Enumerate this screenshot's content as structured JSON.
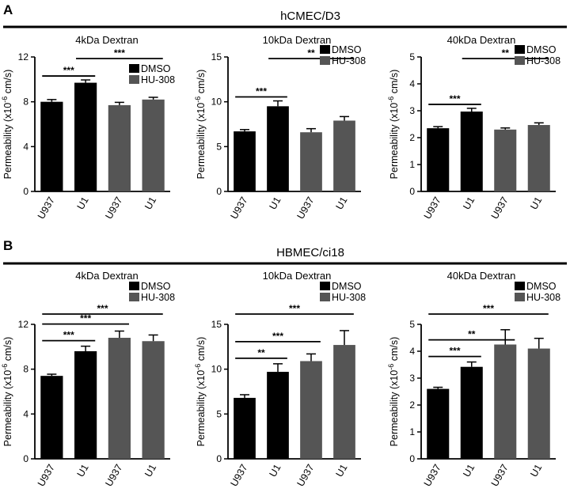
{
  "panels": [
    {
      "letter": "A",
      "title": "hCMEC/D3",
      "rule_color": "#000000",
      "charts": [
        {
          "subtitle": "4kDa Dextran"
        },
        {
          "subtitle": "10kDa Dextran"
        },
        {
          "subtitle": "40kDa Dextran"
        }
      ]
    },
    {
      "letter": "B",
      "title": "HBMEC/ci18",
      "rule_color": "#000000",
      "charts": [
        {
          "subtitle": "4kDa Dextran"
        },
        {
          "subtitle": "10kDa Dextran"
        },
        {
          "subtitle": "40kDa Dextran"
        }
      ]
    }
  ],
  "colors": {
    "DMSO": "#000000",
    "HU-308": "#555555"
  },
  "chart_data": [
    {
      "type": "bar",
      "panel": "A",
      "title": "4kDa Dextran",
      "ylabel": "Permeability (x10^-6 cm/s)",
      "ylabel_base": "Permeability (x10",
      "ylabel_exp": "-6",
      "ylabel_tail": " cm/s)",
      "categories": [
        "U937",
        "U1",
        "U937",
        "U1"
      ],
      "values": [
        8.0,
        9.7,
        7.7,
        8.2
      ],
      "errors": [
        0.2,
        0.25,
        0.25,
        0.2
      ],
      "groups": [
        "DMSO",
        "DMSO",
        "HU-308",
        "HU-308"
      ],
      "legend": [
        "DMSO",
        "HU-308"
      ],
      "ylim": [
        0,
        12
      ],
      "yticks": [
        0,
        4,
        8,
        12
      ],
      "significance": [
        {
          "from": 0,
          "to": 1,
          "label": "***"
        },
        {
          "from": 1,
          "to": 3,
          "label": "***"
        }
      ]
    },
    {
      "type": "bar",
      "panel": "A",
      "title": "10kDa Dextran",
      "ylabel": "Permeability (x10^-6 cm/s)",
      "ylabel_base": "Permeability (x10",
      "ylabel_exp": "-6",
      "ylabel_tail": " cm/s)",
      "categories": [
        "U937",
        "U1",
        "U937",
        "U1"
      ],
      "values": [
        6.7,
        9.5,
        6.6,
        7.9
      ],
      "errors": [
        0.2,
        0.6,
        0.4,
        0.45
      ],
      "groups": [
        "DMSO",
        "DMSO",
        "HU-308",
        "HU-308"
      ],
      "legend": [
        "DMSO",
        "HU-308"
      ],
      "ylim": [
        0,
        15
      ],
      "yticks": [
        0,
        5,
        10,
        15
      ],
      "significance": [
        {
          "from": 0,
          "to": 1,
          "label": "***"
        },
        {
          "from": 1,
          "to": 3,
          "label": "**"
        }
      ]
    },
    {
      "type": "bar",
      "panel": "A",
      "title": "40kDa Dextran",
      "ylabel": "Permeability (x10^-6 cm/s)",
      "ylabel_base": "Permeability (x10",
      "ylabel_exp": "-6",
      "ylabel_tail": " cm/s)",
      "categories": [
        "U937",
        "U1",
        "U937",
        "U1"
      ],
      "values": [
        2.35,
        2.97,
        2.3,
        2.47
      ],
      "errors": [
        0.06,
        0.12,
        0.06,
        0.08
      ],
      "groups": [
        "DMSO",
        "DMSO",
        "HU-308",
        "HU-308"
      ],
      "legend": [
        "DMSO",
        "HU-308"
      ],
      "ylim": [
        0,
        5
      ],
      "yticks": [
        0,
        1,
        2,
        3,
        4,
        5
      ],
      "significance": [
        {
          "from": 0,
          "to": 1,
          "label": "***"
        },
        {
          "from": 1,
          "to": 3,
          "label": "**"
        }
      ]
    },
    {
      "type": "bar",
      "panel": "B",
      "title": "4kDa Dextran",
      "ylabel": "Permeability (x10^-6 cm/s)",
      "ylabel_base": "Permeability (x10",
      "ylabel_exp": "-6",
      "ylabel_tail": " cm/s)",
      "categories": [
        "U937",
        "U1",
        "U937",
        "U1"
      ],
      "values": [
        7.4,
        9.6,
        10.8,
        10.5
      ],
      "errors": [
        0.15,
        0.45,
        0.6,
        0.55
      ],
      "groups": [
        "DMSO",
        "DMSO",
        "HU-308",
        "HU-308"
      ],
      "legend": [
        "DMSO",
        "HU-308"
      ],
      "ylim": [
        0,
        12
      ],
      "yticks": [
        0,
        4,
        8,
        12
      ],
      "significance": [
        {
          "from": 0,
          "to": 1,
          "label": "***"
        },
        {
          "from": 0,
          "to": 2,
          "label": "***"
        },
        {
          "from": 0,
          "to": 3,
          "label": "***"
        }
      ]
    },
    {
      "type": "bar",
      "panel": "B",
      "title": "10kDa Dextran",
      "ylabel": "Permeability (x10^-6 cm/s)",
      "ylabel_base": "Permeability (x10",
      "ylabel_exp": "-6",
      "ylabel_tail": " cm/s)",
      "categories": [
        "U937",
        "U1",
        "U937",
        "U1"
      ],
      "values": [
        6.8,
        9.7,
        10.9,
        12.7
      ],
      "errors": [
        0.35,
        0.9,
        0.8,
        1.6
      ],
      "groups": [
        "DMSO",
        "DMSO",
        "HU-308",
        "HU-308"
      ],
      "legend": [
        "DMSO",
        "HU-308"
      ],
      "ylim": [
        0,
        15
      ],
      "yticks": [
        0,
        5,
        10,
        15
      ],
      "significance": [
        {
          "from": 0,
          "to": 1,
          "label": "**"
        },
        {
          "from": 0,
          "to": 2,
          "label": "***"
        },
        {
          "from": 0,
          "to": 3,
          "label": "***"
        }
      ]
    },
    {
      "type": "bar",
      "panel": "B",
      "title": "40kDa Dextran",
      "ylabel": "Permeability (x10^-6 cm/s)",
      "ylabel_base": "Permeability (x10",
      "ylabel_exp": "-6",
      "ylabel_tail": " cm/s)",
      "categories": [
        "U937",
        "U1",
        "U937",
        "U1"
      ],
      "values": [
        2.6,
        3.42,
        4.25,
        4.1
      ],
      "errors": [
        0.06,
        0.18,
        0.55,
        0.38
      ],
      "groups": [
        "DMSO",
        "DMSO",
        "HU-308",
        "HU-308"
      ],
      "legend": [
        "DMSO",
        "HU-308"
      ],
      "ylim": [
        0,
        5
      ],
      "yticks": [
        0,
        1,
        2,
        3,
        4,
        5
      ],
      "significance": [
        {
          "from": 0,
          "to": 1,
          "label": "***"
        },
        {
          "from": 0,
          "to": 2,
          "label": "**"
        },
        {
          "from": 0,
          "to": 3,
          "label": "***"
        }
      ]
    }
  ]
}
